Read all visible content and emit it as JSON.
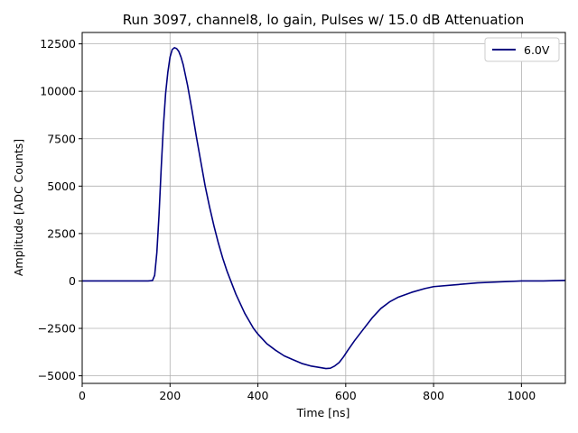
{
  "chart_data": {
    "type": "line",
    "title": "Run 3097, channel8, lo gain, Pulses w/ 15.0 dB Attenuation",
    "xlabel": "Time [ns]",
    "ylabel": "Amplitude [ADC Counts]",
    "xlim": [
      0,
      1100
    ],
    "ylim": [
      -5400,
      13100
    ],
    "xticks": [
      0,
      200,
      400,
      600,
      800,
      1000
    ],
    "yticks": [
      -5000,
      -2500,
      0,
      2500,
      5000,
      7500,
      10000,
      12500
    ],
    "grid": true,
    "legend_position": "top-right",
    "series": [
      {
        "name": "6.0V",
        "color": "#000080",
        "x": [
          0,
          100,
          150,
          160,
          165,
          170,
          175,
          180,
          185,
          190,
          195,
          200,
          205,
          210,
          215,
          220,
          225,
          230,
          240,
          250,
          260,
          270,
          280,
          290,
          300,
          310,
          320,
          330,
          340,
          350,
          360,
          370,
          380,
          390,
          400,
          410,
          420,
          440,
          460,
          480,
          500,
          520,
          540,
          555,
          565,
          575,
          585,
          595,
          605,
          620,
          640,
          660,
          680,
          700,
          720,
          750,
          780,
          800,
          850,
          900,
          950,
          1000,
          1050,
          1100
        ],
        "y": [
          0,
          0,
          0,
          20,
          300,
          1500,
          3500,
          6000,
          8200,
          9900,
          11000,
          11800,
          12200,
          12300,
          12250,
          12100,
          11800,
          11400,
          10300,
          9000,
          7600,
          6300,
          5000,
          3900,
          2900,
          2000,
          1200,
          500,
          -100,
          -700,
          -1200,
          -1700,
          -2100,
          -2500,
          -2800,
          -3050,
          -3300,
          -3650,
          -3950,
          -4150,
          -4350,
          -4480,
          -4560,
          -4620,
          -4600,
          -4480,
          -4300,
          -4000,
          -3650,
          -3150,
          -2550,
          -1950,
          -1450,
          -1100,
          -850,
          -600,
          -400,
          -300,
          -200,
          -100,
          -50,
          0,
          0,
          30
        ]
      }
    ]
  }
}
